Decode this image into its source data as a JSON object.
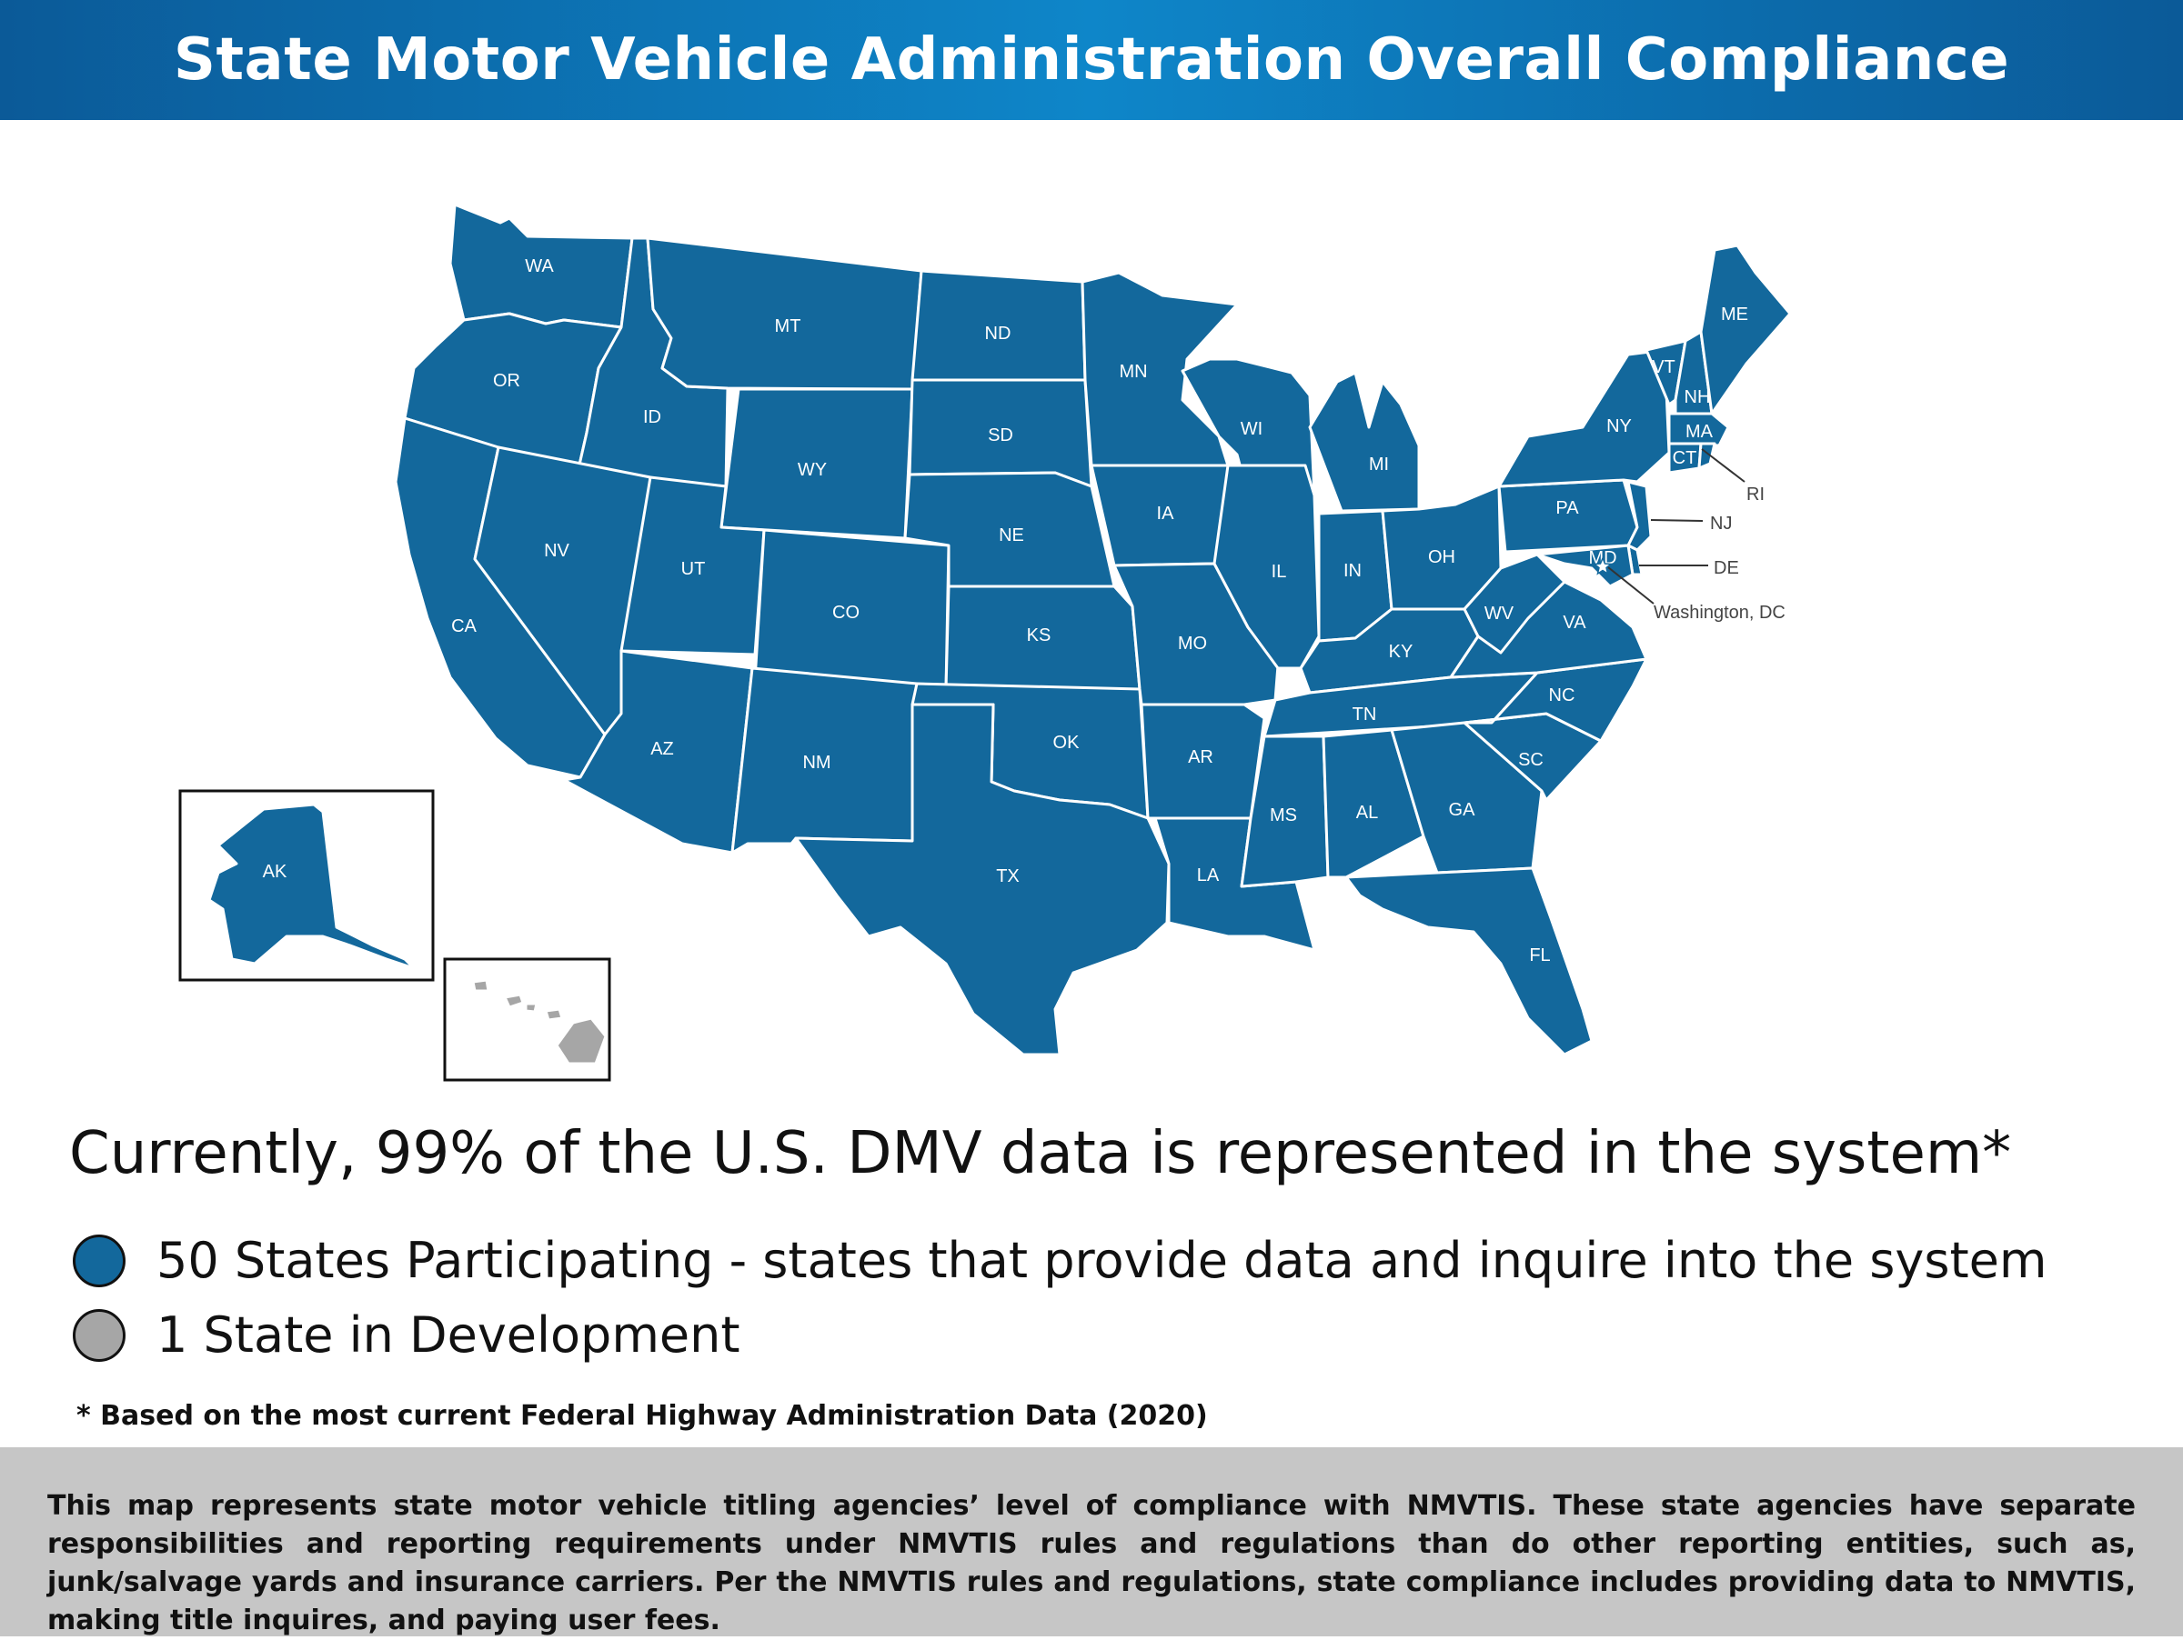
{
  "title": "State Motor Vehicle Administration Overall Compliance",
  "colors": {
    "participating": "#13689c",
    "development": "#a6a6a6",
    "header_start": "#0b5a98",
    "header_mid": "#0e86c9",
    "disclaimer_bg": "#c6c6c6",
    "border": "#ffffff"
  },
  "map": {
    "states": [
      {
        "abbr": "WA",
        "status": "participating"
      },
      {
        "abbr": "OR",
        "status": "participating"
      },
      {
        "abbr": "CA",
        "status": "participating"
      },
      {
        "abbr": "ID",
        "status": "participating"
      },
      {
        "abbr": "NV",
        "status": "participating"
      },
      {
        "abbr": "MT",
        "status": "participating"
      },
      {
        "abbr": "WY",
        "status": "participating"
      },
      {
        "abbr": "UT",
        "status": "participating"
      },
      {
        "abbr": "AZ",
        "status": "participating"
      },
      {
        "abbr": "CO",
        "status": "participating"
      },
      {
        "abbr": "NM",
        "status": "participating"
      },
      {
        "abbr": "ND",
        "status": "participating"
      },
      {
        "abbr": "SD",
        "status": "participating"
      },
      {
        "abbr": "NE",
        "status": "participating"
      },
      {
        "abbr": "KS",
        "status": "participating"
      },
      {
        "abbr": "OK",
        "status": "participating"
      },
      {
        "abbr": "TX",
        "status": "participating"
      },
      {
        "abbr": "MN",
        "status": "participating"
      },
      {
        "abbr": "IA",
        "status": "participating"
      },
      {
        "abbr": "MO",
        "status": "participating"
      },
      {
        "abbr": "AR",
        "status": "participating"
      },
      {
        "abbr": "LA",
        "status": "participating"
      },
      {
        "abbr": "WI",
        "status": "participating"
      },
      {
        "abbr": "IL",
        "status": "participating"
      },
      {
        "abbr": "MI",
        "status": "participating"
      },
      {
        "abbr": "IN",
        "status": "participating"
      },
      {
        "abbr": "OH",
        "status": "participating"
      },
      {
        "abbr": "KY",
        "status": "participating"
      },
      {
        "abbr": "TN",
        "status": "participating"
      },
      {
        "abbr": "MS",
        "status": "participating"
      },
      {
        "abbr": "AL",
        "status": "participating"
      },
      {
        "abbr": "GA",
        "status": "participating"
      },
      {
        "abbr": "FL",
        "status": "participating"
      },
      {
        "abbr": "SC",
        "status": "participating"
      },
      {
        "abbr": "NC",
        "status": "participating"
      },
      {
        "abbr": "VA",
        "status": "participating"
      },
      {
        "abbr": "WV",
        "status": "participating"
      },
      {
        "abbr": "PA",
        "status": "participating"
      },
      {
        "abbr": "NY",
        "status": "participating"
      },
      {
        "abbr": "VT",
        "status": "participating"
      },
      {
        "abbr": "NH",
        "status": "participating"
      },
      {
        "abbr": "ME",
        "status": "participating"
      },
      {
        "abbr": "MA",
        "status": "participating"
      },
      {
        "abbr": "CT",
        "status": "participating"
      },
      {
        "abbr": "RI",
        "status": "participating"
      },
      {
        "abbr": "NJ",
        "status": "participating"
      },
      {
        "abbr": "DE",
        "status": "participating"
      },
      {
        "abbr": "MD",
        "status": "participating"
      },
      {
        "abbr": "AK",
        "status": "participating"
      },
      {
        "abbr": "HI",
        "status": "development"
      }
    ],
    "callouts": [
      "RI",
      "NJ",
      "DE",
      "Washington, DC"
    ]
  },
  "headline": "Currently, 99% of the U.S. DMV data is represented in the system*",
  "legend": [
    {
      "label": "50 States Participating - states that provide data and inquire into the system",
      "color": "#13689c"
    },
    {
      "label": "1 State in Development",
      "color": "#a6a6a6"
    }
  ],
  "footnote": "* Based on the most current Federal Highway Administration Data (2020)",
  "disclaimer": "This map represents state motor vehicle titling agencies’ level of compliance with NMVTIS. These state agencies have separate responsibilities and reporting requirements under NMVTIS rules and regulations than do other reporting entities, such as, junk/salvage yards and insurance carriers. Per the NMVTIS rules and regulations, state compliance includes providing data to NMVTIS, making title inquires, and paying user fees."
}
